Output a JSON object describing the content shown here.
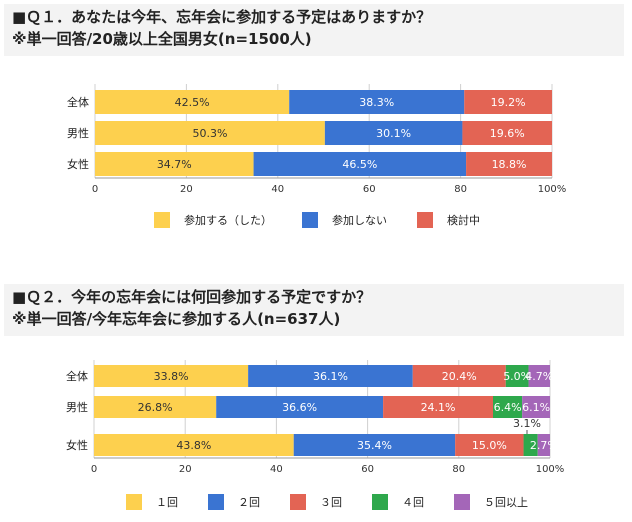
{
  "q1": {
    "title": "■Ｑ１．あなたは今年、忘年会に参加する予定はありますか？",
    "subtitle": "※単一回答/20歳以上全国男女(n=1500人)"
  },
  "q2": {
    "title": "■Ｑ２．今年の忘年会には何回参加する予定ですか？",
    "subtitle": "※単一回答/今年忘年会に参加する人(n=637人)"
  },
  "chart_data": [
    {
      "type": "bar",
      "orientation": "horizontal-stacked",
      "categories": [
        "全体",
        "男性",
        "女性"
      ],
      "series": [
        {
          "name": "参加する（した）",
          "values": [
            42.5,
            50.3,
            34.7
          ],
          "color": "#fdd04e"
        },
        {
          "name": "参加しない",
          "values": [
            38.3,
            30.1,
            46.5
          ],
          "color": "#3a74d2"
        },
        {
          "name": "検討中",
          "values": [
            19.2,
            19.6,
            18.8
          ],
          "color": "#e36454"
        }
      ],
      "data_labels": [
        [
          "42.5%",
          "38.3%",
          "19.2%"
        ],
        [
          "50.3%",
          "30.1%",
          "19.6%"
        ],
        [
          "34.7%",
          "46.5%",
          "18.8%"
        ]
      ],
      "xlim": [
        0,
        100
      ],
      "xticks": [
        "0",
        "20",
        "40",
        "60",
        "80",
        "100%"
      ],
      "legend": "bottom"
    },
    {
      "type": "bar",
      "orientation": "horizontal-stacked",
      "categories": [
        "全体",
        "男性",
        "女性"
      ],
      "series": [
        {
          "name": "１回",
          "values": [
            33.8,
            26.8,
            43.8
          ],
          "color": "#fdd04e"
        },
        {
          "name": "２回",
          "values": [
            36.1,
            36.6,
            35.4
          ],
          "color": "#3a74d2"
        },
        {
          "name": "３回",
          "values": [
            20.4,
            24.1,
            15.0
          ],
          "color": "#e36454"
        },
        {
          "name": "４回",
          "values": [
            5.0,
            6.4,
            3.1
          ],
          "color": "#2ea84c"
        },
        {
          "name": "５回以上",
          "values": [
            4.7,
            6.1,
            2.7
          ],
          "color": "#a466b8"
        }
      ],
      "data_labels": [
        [
          "33.8%",
          "36.1%",
          "20.4%",
          "5.0%",
          "4.7%"
        ],
        [
          "26.8%",
          "36.6%",
          "24.1%",
          "6.4%",
          "6.1%"
        ],
        [
          "43.8%",
          "35.4%",
          "15.0%",
          "3.1%",
          "2.7%"
        ]
      ],
      "xlim": [
        0,
        100
      ],
      "xticks": [
        "0",
        "20",
        "40",
        "60",
        "80",
        "100%"
      ],
      "legend": "bottom"
    }
  ]
}
